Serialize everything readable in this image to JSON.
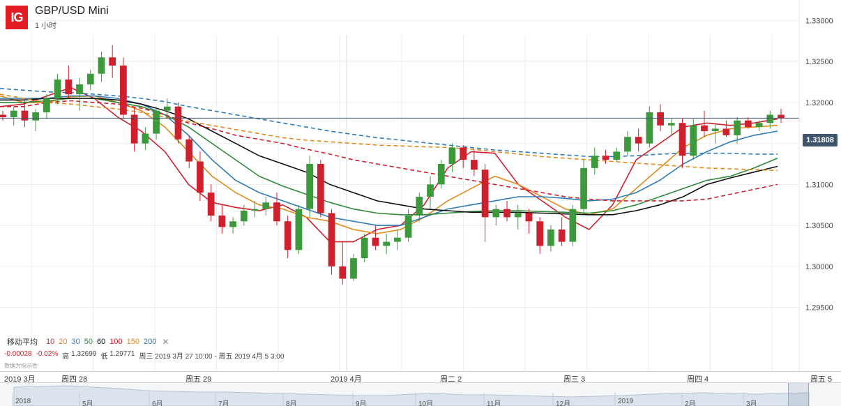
{
  "header": {
    "logo_text": "IG",
    "instrument": "GBP/USD Mini",
    "interval": "1 小时"
  },
  "current_price": "1.31808",
  "indicators": {
    "title": "移动平均",
    "periods": [
      {
        "label": "10",
        "color": "#d0202e"
      },
      {
        "label": "20",
        "color": "#e28a1a"
      },
      {
        "label": "30",
        "color": "#2f7bb5"
      },
      {
        "label": "50",
        "color": "#2f8a3a"
      },
      {
        "label": "60",
        "color": "#111111"
      },
      {
        "label": "100",
        "color": "#d0202e"
      },
      {
        "label": "150",
        "color": "#e28a1a"
      },
      {
        "label": "200",
        "color": "#2f7bb5"
      }
    ],
    "close_icon": "✕"
  },
  "ohlc": {
    "change": "-0.00028",
    "change_pct": "-0.02%",
    "high_label": "高",
    "high": "1.32699",
    "low_label": "低",
    "low": "1.29771",
    "range": "周三 2019 3月 27 10:00 - 周五 2019 4月 5 3:00"
  },
  "disclaimer": "数据为指示性",
  "chart_data": {
    "type": "candlestick",
    "title": "GBP/USD Mini",
    "ylim": [
      1.2925,
      1.3325
    ],
    "y_ticks": [
      "1.33000",
      "1.32500",
      "1.32000",
      "1.31500",
      "1.31000",
      "1.30500",
      "1.30000",
      "1.29500"
    ],
    "x_ticks": [
      "2019 3月",
      "周四 28",
      "周五 29",
      "2019 4月",
      "周二 2",
      "周三 3",
      "周四 4",
      "周五 5"
    ],
    "high": 1.32699,
    "low": 1.29771,
    "last": 1.31808,
    "colors": {
      "up": "#3c9a3c",
      "down": "#d0202e"
    },
    "ma_series": [
      {
        "name": "MA10",
        "color": "#d0202e",
        "style": "solid",
        "values": [
          1.3195,
          1.3198,
          1.3208,
          1.3218,
          1.3205,
          1.3182,
          1.3165,
          1.314,
          1.31,
          1.3078,
          1.3072,
          1.3068,
          1.3075,
          1.306,
          1.303,
          1.303,
          1.3045,
          1.305,
          1.3075,
          1.312,
          1.314,
          1.3138,
          1.31,
          1.308,
          1.306,
          1.3045,
          1.3075,
          1.313,
          1.315,
          1.317,
          1.3175,
          1.3172,
          1.3175,
          1.318
        ]
      },
      {
        "name": "MA20",
        "color": "#e28a1a",
        "style": "solid",
        "values": [
          1.3208,
          1.32,
          1.32,
          1.3207,
          1.3208,
          1.32,
          1.319,
          1.317,
          1.314,
          1.311,
          1.309,
          1.3075,
          1.307,
          1.306,
          1.3055,
          1.3045,
          1.304,
          1.3045,
          1.306,
          1.308,
          1.3095,
          1.311,
          1.31,
          1.3085,
          1.307,
          1.3063,
          1.307,
          1.3095,
          1.312,
          1.3145,
          1.316,
          1.3168,
          1.317,
          1.3172
        ]
      },
      {
        "name": "MA30",
        "color": "#2f7bb5",
        "style": "solid",
        "values": [
          1.3205,
          1.3205,
          1.3205,
          1.3208,
          1.3208,
          1.3205,
          1.3198,
          1.3185,
          1.316,
          1.313,
          1.3105,
          1.309,
          1.308,
          1.307,
          1.306,
          1.3055,
          1.305,
          1.305,
          1.306,
          1.307,
          1.3075,
          1.308,
          1.3085,
          1.3085,
          1.3083,
          1.308,
          1.3082,
          1.309,
          1.3105,
          1.3125,
          1.314,
          1.3152,
          1.316,
          1.3165
        ]
      },
      {
        "name": "MA50",
        "color": "#2f8a3a",
        "style": "solid",
        "values": [
          1.32,
          1.32,
          1.3202,
          1.3205,
          1.3205,
          1.32,
          1.3195,
          1.3185,
          1.317,
          1.315,
          1.313,
          1.311,
          1.3098,
          1.3088,
          1.3078,
          1.307,
          1.3065,
          1.3063,
          1.3063,
          1.3065,
          1.3067,
          1.3068,
          1.3068,
          1.3067,
          1.3066,
          1.3065,
          1.3068,
          1.3075,
          1.3085,
          1.3095,
          1.3105,
          1.311,
          1.312,
          1.3132
        ]
      },
      {
        "name": "MA60",
        "color": "#111111",
        "style": "solid",
        "values": [
          1.3203,
          1.3203,
          1.3205,
          1.3205,
          1.3205,
          1.3203,
          1.3198,
          1.319,
          1.318,
          1.3165,
          1.315,
          1.3135,
          1.3125,
          1.3115,
          1.31,
          1.309,
          1.308,
          1.3075,
          1.307,
          1.3068,
          1.3066,
          1.3066,
          1.3066,
          1.3065,
          1.3064,
          1.3063,
          1.3063,
          1.3068,
          1.3075,
          1.3085,
          1.31,
          1.3108,
          1.3115,
          1.3122
        ]
      },
      {
        "name": "MA100",
        "color": "#d0202e",
        "style": "dashed",
        "values": [
          1.3195,
          1.3195,
          1.32,
          1.3202,
          1.32,
          1.3198,
          1.3193,
          1.3185,
          1.3175,
          1.3168,
          1.316,
          1.3155,
          1.315,
          1.3143,
          1.3137,
          1.313,
          1.3125,
          1.312,
          1.3115,
          1.311,
          1.3105,
          1.31,
          1.3095,
          1.309,
          1.3085,
          1.3082,
          1.308,
          1.308,
          1.308,
          1.308,
          1.3082,
          1.3088,
          1.3094,
          1.31
        ]
      },
      {
        "name": "MA150",
        "color": "#e28a1a",
        "style": "dashed",
        "values": [
          1.321,
          1.3205,
          1.32,
          1.3198,
          1.3195,
          1.3192,
          1.3188,
          1.3182,
          1.3177,
          1.3172,
          1.3167,
          1.3162,
          1.3157,
          1.3154,
          1.3152,
          1.315,
          1.3148,
          1.3147,
          1.3146,
          1.3145,
          1.3143,
          1.314,
          1.3137,
          1.3134,
          1.3132,
          1.313,
          1.3128,
          1.3126,
          1.3124,
          1.3122,
          1.312,
          1.3119,
          1.3118,
          1.3117
        ]
      },
      {
        "name": "MA200",
        "color": "#2f7bb5",
        "style": "dashed",
        "values": [
          1.3217,
          1.3215,
          1.3213,
          1.3212,
          1.321,
          1.3208,
          1.3205,
          1.3201,
          1.3195,
          1.319,
          1.3185,
          1.318,
          1.3175,
          1.317,
          1.3165,
          1.3161,
          1.3157,
          1.3154,
          1.3151,
          1.3148,
          1.3145,
          1.3142,
          1.314,
          1.3138,
          1.3136,
          1.3134,
          1.3134,
          1.3135,
          1.3137,
          1.3138,
          1.3138,
          1.3138,
          1.3137,
          1.3137
        ]
      }
    ],
    "candles": [
      [
        1.3185,
        1.319,
        1.3178,
        1.3182
      ],
      [
        1.3182,
        1.3195,
        1.3172,
        1.319
      ],
      [
        1.319,
        1.3202,
        1.317,
        1.3178
      ],
      [
        1.3178,
        1.3192,
        1.3165,
        1.3188
      ],
      [
        1.3188,
        1.321,
        1.318,
        1.3205
      ],
      [
        1.3205,
        1.3235,
        1.3198,
        1.3228
      ],
      [
        1.3228,
        1.3245,
        1.3205,
        1.321
      ],
      [
        1.321,
        1.323,
        1.319,
        1.3222
      ],
      [
        1.3222,
        1.324,
        1.3215,
        1.3235
      ],
      [
        1.3235,
        1.3262,
        1.3225,
        1.3255
      ],
      [
        1.3255,
        1.327,
        1.323,
        1.3245
      ],
      [
        1.3245,
        1.3255,
        1.318,
        1.3185
      ],
      [
        1.3185,
        1.3195,
        1.314,
        1.315
      ],
      [
        1.315,
        1.317,
        1.3142,
        1.3162
      ],
      [
        1.3162,
        1.3195,
        1.3155,
        1.319
      ],
      [
        1.319,
        1.3205,
        1.318,
        1.3195
      ],
      [
        1.3195,
        1.32,
        1.315,
        1.3155
      ],
      [
        1.3155,
        1.316,
        1.312,
        1.3128
      ],
      [
        1.3128,
        1.314,
        1.308,
        1.309
      ],
      [
        1.309,
        1.31,
        1.3055,
        1.3062
      ],
      [
        1.3062,
        1.3075,
        1.304,
        1.3048
      ],
      [
        1.3048,
        1.306,
        1.304,
        1.3055
      ],
      [
        1.3055,
        1.3075,
        1.305,
        1.3068
      ],
      [
        1.3068,
        1.308,
        1.306,
        1.307
      ],
      [
        1.307,
        1.3085,
        1.3062,
        1.3078
      ],
      [
        1.3078,
        1.309,
        1.305,
        1.3055
      ],
      [
        1.3055,
        1.3062,
        1.301,
        1.302
      ],
      [
        1.302,
        1.3075,
        1.3015,
        1.307
      ],
      [
        1.307,
        1.3135,
        1.306,
        1.3125
      ],
      [
        1.3125,
        1.313,
        1.306,
        1.3065
      ],
      [
        1.3065,
        1.307,
        1.299,
        1.3
      ],
      [
        1.3,
        1.303,
        1.2978,
        1.2985
      ],
      [
        1.2985,
        1.3015,
        1.2982,
        1.301
      ],
      [
        1.301,
        1.304,
        1.3005,
        1.3035
      ],
      [
        1.3035,
        1.305,
        1.302,
        1.3025
      ],
      [
        1.3025,
        1.304,
        1.3015,
        1.303
      ],
      [
        1.303,
        1.3045,
        1.302,
        1.3035
      ],
      [
        1.3035,
        1.307,
        1.303,
        1.3062
      ],
      [
        1.3062,
        1.309,
        1.3055,
        1.3085
      ],
      [
        1.3085,
        1.311,
        1.307,
        1.31
      ],
      [
        1.31,
        1.313,
        1.3095,
        1.3125
      ],
      [
        1.3125,
        1.315,
        1.3115,
        1.3145
      ],
      [
        1.3145,
        1.3148,
        1.312,
        1.313
      ],
      [
        1.313,
        1.3142,
        1.311,
        1.3118
      ],
      [
        1.3118,
        1.3125,
        1.303,
        1.306
      ],
      [
        1.306,
        1.3075,
        1.305,
        1.307
      ],
      [
        1.307,
        1.308,
        1.3055,
        1.306
      ],
      [
        1.306,
        1.3075,
        1.3045,
        1.3065
      ],
      [
        1.3065,
        1.307,
        1.304,
        1.3055
      ],
      [
        1.3055,
        1.306,
        1.3015,
        1.3025
      ],
      [
        1.3025,
        1.305,
        1.3018,
        1.3045
      ],
      [
        1.3045,
        1.306,
        1.3025,
        1.303
      ],
      [
        1.303,
        1.3075,
        1.3025,
        1.307
      ],
      [
        1.307,
        1.313,
        1.3065,
        1.312
      ],
      [
        1.312,
        1.3145,
        1.3112,
        1.3135
      ],
      [
        1.3135,
        1.3142,
        1.3125,
        1.313
      ],
      [
        1.313,
        1.3145,
        1.3128,
        1.314
      ],
      [
        1.314,
        1.3165,
        1.3135,
        1.3158
      ],
      [
        1.3158,
        1.3168,
        1.314,
        1.315
      ],
      [
        1.315,
        1.3195,
        1.3145,
        1.3188
      ],
      [
        1.3188,
        1.3198,
        1.3165,
        1.3172
      ],
      [
        1.3172,
        1.318,
        1.316,
        1.3175
      ],
      [
        1.3175,
        1.318,
        1.312,
        1.3135
      ],
      [
        1.3135,
        1.318,
        1.313,
        1.3172
      ],
      [
        1.3172,
        1.319,
        1.3158,
        1.3165
      ],
      [
        1.3165,
        1.3175,
        1.315,
        1.3168
      ],
      [
        1.3168,
        1.3178,
        1.3158,
        1.316
      ],
      [
        1.316,
        1.3182,
        1.315,
        1.3178
      ],
      [
        1.3178,
        1.3182,
        1.3168,
        1.317
      ],
      [
        1.317,
        1.3178,
        1.3165,
        1.3175
      ],
      [
        1.3175,
        1.319,
        1.3168,
        1.3185
      ],
      [
        1.3185,
        1.3192,
        1.3175,
        1.3181
      ]
    ]
  },
  "time_axis": [
    {
      "label": "2019 3月",
      "x": 6
    },
    {
      "label": "周四 28",
      "x": 88
    },
    {
      "label": "周五 29",
      "x": 266
    },
    {
      "label": "2019 4月",
      "x": 474
    },
    {
      "label": "周二 2",
      "x": 631
    },
    {
      "label": "周三 3",
      "x": 808
    },
    {
      "label": "周四 4",
      "x": 985
    },
    {
      "label": "周五 5",
      "x": 1162
    }
  ],
  "navigator": {
    "labels": [
      "2018",
      "5月",
      "6月",
      "7月",
      "8月",
      "9月",
      "10月",
      "11月",
      "12月",
      "2019",
      "2月",
      "3月"
    ],
    "values": [
      1.4,
      1.41,
      1.42,
      1.4,
      1.38,
      1.35,
      1.34,
      1.33,
      1.33,
      1.32,
      1.31,
      1.3,
      1.29,
      1.28,
      1.28,
      1.3,
      1.31,
      1.29,
      1.29,
      1.28,
      1.27,
      1.26,
      1.27,
      1.28,
      1.3,
      1.31,
      1.32,
      1.31,
      1.3,
      1.31,
      1.32
    ]
  }
}
